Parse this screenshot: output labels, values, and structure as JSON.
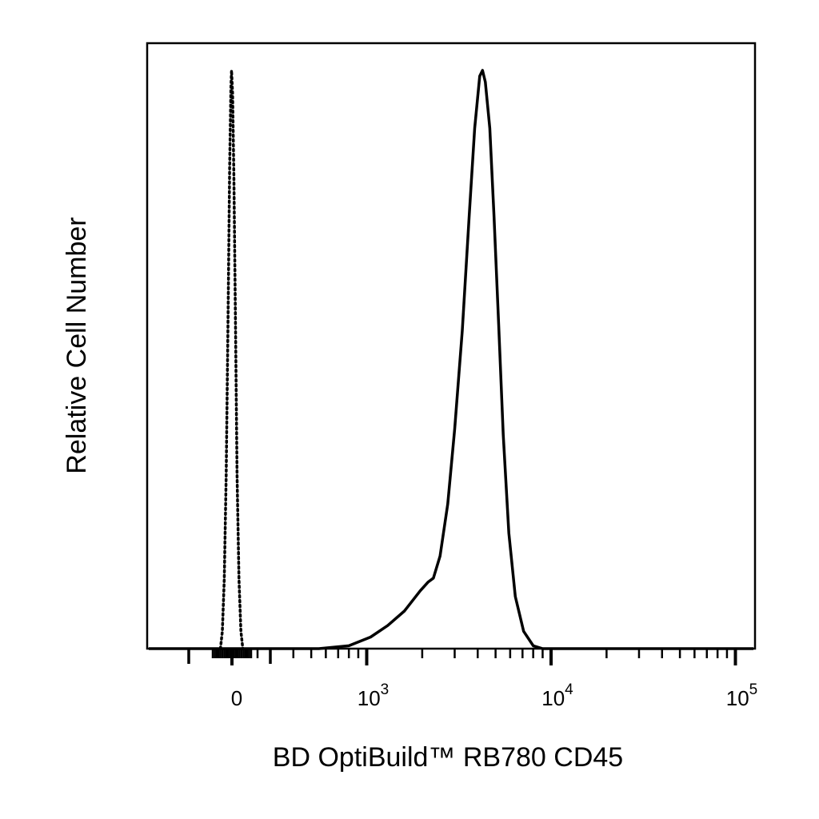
{
  "chart_data": {
    "type": "area",
    "title": "",
    "xlabel": "BD OptiBuild™ RB780 CD45",
    "ylabel": "Relative Cell Number",
    "x_scale": "biexponential (log above 10^3, linear around 0)",
    "xlim": [
      -200,
      200000
    ],
    "ylim": [
      0,
      1
    ],
    "grid": false,
    "legend": "none",
    "x_ticks": [
      {
        "value": 0,
        "base": "0",
        "exp": ""
      },
      {
        "value": 1000,
        "base": "10",
        "exp": "3"
      },
      {
        "value": 10000,
        "base": "10",
        "exp": "4"
      },
      {
        "value": 100000,
        "base": "10",
        "exp": "5"
      }
    ],
    "series": [
      {
        "style": "dotted",
        "points": [
          [
            -90,
            0.0
          ],
          [
            -75,
            0.03
          ],
          [
            -60,
            0.12
          ],
          [
            -45,
            0.3
          ],
          [
            -30,
            0.58
          ],
          [
            -18,
            0.83
          ],
          [
            -8,
            0.97
          ],
          [
            -3,
            1.0
          ],
          [
            5,
            0.96
          ],
          [
            15,
            0.82
          ],
          [
            27,
            0.58
          ],
          [
            40,
            0.3
          ],
          [
            55,
            0.12
          ],
          [
            70,
            0.03
          ],
          [
            85,
            0.0
          ]
        ]
      },
      {
        "style": "solid",
        "points": [
          [
            -200,
            0.0
          ],
          [
            550,
            0.0
          ],
          [
            800,
            0.005
          ],
          [
            1050,
            0.02
          ],
          [
            1300,
            0.04
          ],
          [
            1600,
            0.065
          ],
          [
            1950,
            0.1
          ],
          [
            2150,
            0.115
          ],
          [
            2300,
            0.122
          ],
          [
            2500,
            0.16
          ],
          [
            2750,
            0.25
          ],
          [
            3000,
            0.38
          ],
          [
            3300,
            0.55
          ],
          [
            3600,
            0.75
          ],
          [
            3850,
            0.9
          ],
          [
            4100,
            0.99
          ],
          [
            4250,
            1.0
          ],
          [
            4400,
            0.98
          ],
          [
            4650,
            0.9
          ],
          [
            4900,
            0.75
          ],
          [
            5200,
            0.56
          ],
          [
            5500,
            0.37
          ],
          [
            5900,
            0.2
          ],
          [
            6400,
            0.09
          ],
          [
            7100,
            0.03
          ],
          [
            8000,
            0.005
          ],
          [
            9000,
            0.0
          ],
          [
            200000,
            0.0
          ]
        ]
      }
    ]
  }
}
